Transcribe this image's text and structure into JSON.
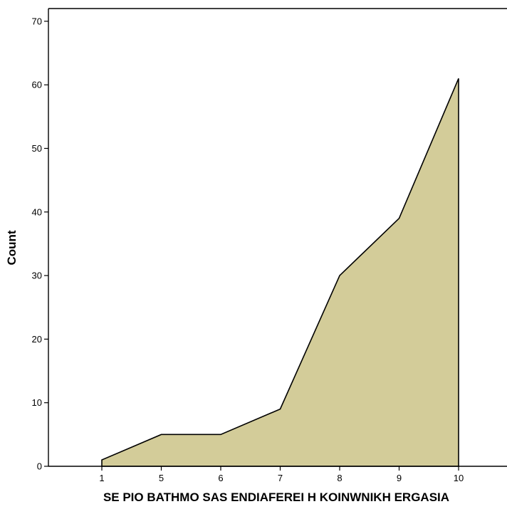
{
  "chart_data": {
    "type": "area",
    "title": "",
    "xlabel": "SE PIO BATHMO SAS ENDIAFEREI H KOINWNIKH ERGASIA",
    "ylabel": "Count",
    "categories": [
      "1",
      "5",
      "6",
      "7",
      "8",
      "9",
      "10"
    ],
    "values": [
      1,
      5,
      5,
      9,
      30,
      39,
      61
    ],
    "ylim": [
      0,
      72
    ],
    "yticks": [
      0,
      10,
      20,
      30,
      40,
      50,
      60,
      70
    ],
    "grid": false,
    "legend": "none",
    "colors": {
      "fill": "#d3cc99",
      "stroke": "#000000",
      "axis": "#000000"
    }
  }
}
